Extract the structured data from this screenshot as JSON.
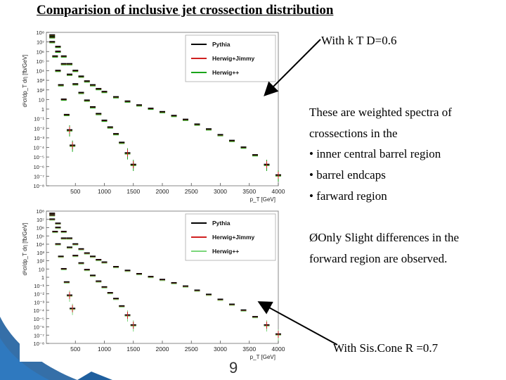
{
  "slide": {
    "title": "Comparision of inclusive jet crossection distribution",
    "annotation_top": "With  k T  D=0.6",
    "description_lines": [
      "These are weighted  spectra of",
      "crossections  in the",
      "• inner central barrel region",
      "• barrel endcaps",
      "• farward region"
    ],
    "observation_lines": [
      "Only Slight differences in the",
      "forward region are observed."
    ],
    "observation_bullet": "Ø",
    "annotation_bottom": "With Sis.Cone  R =0.7",
    "page_number": "9"
  },
  "colors": {
    "pythia": "#000000",
    "herwig_jimmy": "#d02020",
    "herwig_pp_top": "#1aa51a",
    "herwig_pp_bottom": "#7bd67b",
    "arrow": "#000000",
    "decor_blue": "#1f5f9e"
  },
  "chart_data": [
    {
      "type": "scatter",
      "log_y": true,
      "xlim": [
        0,
        4000
      ],
      "ylim_exponents": [
        -8,
        8
      ],
      "xlabel": "p_T [GeV]",
      "ylabel": "d²σ/dp_T dη [fb/GeV]",
      "x_ticks": [
        500,
        1000,
        1500,
        2000,
        2500,
        3000,
        3500,
        4000
      ],
      "y_tick_labels": [
        "10⁸",
        "10⁷",
        "10⁶",
        "10⁵",
        "10⁴",
        "10³",
        "10²",
        "10",
        "1",
        "10⁻¹",
        "10⁻²",
        "10⁻³",
        "10⁻⁴",
        "10⁻⁵",
        "10⁻⁶",
        "10⁻⁷",
        "10⁻⁸"
      ],
      "legend_position": "top-right",
      "legend": [
        "Pythia",
        "Herwig+Jimmy",
        "Herwig++"
      ],
      "series": [
        {
          "name": "Pythia",
          "region": "central",
          "x": [
            100,
            200,
            300,
            400,
            500,
            600,
            700,
            800,
            900,
            1000,
            1200,
            1400,
            1600,
            1800,
            2000,
            2200,
            2400,
            2600,
            2800,
            3000,
            3200,
            3400,
            3600,
            3800,
            4000
          ],
          "y": [
            7.7,
            6.5,
            5.5,
            4.7,
            4.0,
            3.4,
            2.9,
            2.5,
            2.1,
            1.8,
            1.25,
            0.8,
            0.4,
            0.05,
            -0.3,
            -0.7,
            -1.1,
            -1.6,
            -2.1,
            -2.7,
            -3.3,
            -4.0,
            -4.8,
            -5.8,
            -6.9
          ]
        },
        {
          "name": "Pythia",
          "region": "endcap",
          "x": [
            100,
            200,
            300,
            400,
            500,
            600,
            700,
            800,
            900,
            1000,
            1100,
            1200,
            1300,
            1400,
            1500
          ],
          "y": [
            7.5,
            6.0,
            4.7,
            3.6,
            2.6,
            1.7,
            0.9,
            0.2,
            -0.5,
            -1.2,
            -1.9,
            -2.6,
            -3.5,
            -4.6,
            -5.8
          ]
        },
        {
          "name": "Pythia",
          "region": "forward",
          "x": [
            100,
            150,
            200,
            250,
            300,
            350,
            400,
            450
          ],
          "y": [
            7.0,
            5.5,
            4.0,
            2.5,
            1.0,
            -0.6,
            -2.2,
            -3.8
          ]
        }
      ]
    },
    {
      "type": "scatter",
      "log_y": true,
      "xlim": [
        0,
        4000
      ],
      "ylim_exponents": [
        -8,
        8
      ],
      "xlabel": "p_T [GeV]",
      "ylabel": "d²σ/dp_T dη [fb/GeV]",
      "x_ticks": [
        500,
        1000,
        1500,
        2000,
        2500,
        3000,
        3500,
        4000
      ],
      "y_tick_labels": [
        "10⁸",
        "10⁷",
        "10⁶",
        "10⁵",
        "10⁴",
        "10³",
        "10²",
        "10",
        "1",
        "10⁻¹",
        "10⁻²",
        "10⁻³",
        "10⁻⁴",
        "10⁻⁵",
        "10⁻⁶",
        "10⁻⁷",
        "10⁻⁸"
      ],
      "legend_position": "top-right",
      "legend": [
        "Pythia",
        "Herwig+Jimmy",
        "Herwig++"
      ],
      "series": [
        {
          "name": "Pythia",
          "region": "central",
          "x": [
            100,
            200,
            300,
            400,
            500,
            600,
            700,
            800,
            900,
            1000,
            1200,
            1400,
            1600,
            1800,
            2000,
            2200,
            2400,
            2600,
            2800,
            3000,
            3200,
            3400,
            3600,
            3800,
            4000
          ],
          "y": [
            7.7,
            6.5,
            5.5,
            4.7,
            4.0,
            3.4,
            2.9,
            2.5,
            2.1,
            1.8,
            1.25,
            0.8,
            0.4,
            0.05,
            -0.3,
            -0.7,
            -1.1,
            -1.6,
            -2.1,
            -2.7,
            -3.3,
            -4.0,
            -4.8,
            -5.8,
            -6.9
          ]
        },
        {
          "name": "Pythia",
          "region": "endcap",
          "x": [
            100,
            200,
            300,
            400,
            500,
            600,
            700,
            800,
            900,
            1000,
            1100,
            1200,
            1300,
            1400,
            1500
          ],
          "y": [
            7.5,
            6.0,
            4.7,
            3.6,
            2.6,
            1.7,
            0.9,
            0.2,
            -0.5,
            -1.2,
            -1.9,
            -2.6,
            -3.5,
            -4.6,
            -5.8
          ]
        },
        {
          "name": "Pythia",
          "region": "forward",
          "x": [
            100,
            150,
            200,
            250,
            300,
            350,
            400,
            450
          ],
          "y": [
            7.0,
            5.5,
            4.0,
            2.5,
            1.0,
            -0.6,
            -2.2,
            -3.8
          ]
        }
      ]
    }
  ]
}
